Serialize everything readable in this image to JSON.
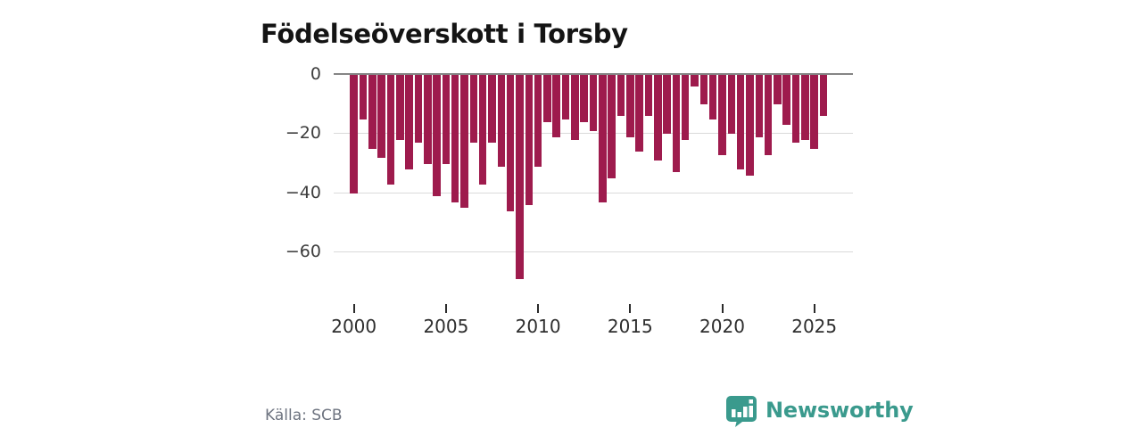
{
  "title": "Födelseöverskott i Torsby",
  "source": "Källa: SCB",
  "brand": {
    "name": "Newsworthy",
    "color": "#3a9a8d"
  },
  "colors": {
    "bar": "#9e1b4d",
    "grid": "#dadada",
    "zero_line": "#858585",
    "axis_text": "#3d3d3d",
    "title_text": "#141414",
    "source_text": "#6e7480"
  },
  "chart_data": {
    "type": "bar",
    "title": "Födelseöverskott i Torsby",
    "xlabel": "",
    "ylabel": "",
    "ylim": [
      -72,
      0
    ],
    "grid": "horizontal",
    "legend": false,
    "yticks": [
      0,
      -20,
      -40,
      -60
    ],
    "xticks": [
      "2000",
      "2005",
      "2010",
      "2015",
      "2020",
      "2025"
    ],
    "x": [
      "2000 H1",
      "2000 H2",
      "2001 H1",
      "2001 H2",
      "2002 H1",
      "2002 H2",
      "2003 H1",
      "2003 H2",
      "2004 H1",
      "2004 H2",
      "2005 H1",
      "2005 H2",
      "2006 H1",
      "2006 H2",
      "2007 H1",
      "2007 H2",
      "2008 H1",
      "2008 H2",
      "2009 H1",
      "2009 H2",
      "2010 H1",
      "2010 H2",
      "2011 H1",
      "2011 H2",
      "2012 H1",
      "2012 H2",
      "2013 H1",
      "2013 H2",
      "2014 H1",
      "2014 H2",
      "2015 H1",
      "2015 H2",
      "2016 H1",
      "2016 H2",
      "2017 H1",
      "2017 H2",
      "2018 H1",
      "2018 H2",
      "2019 H1",
      "2019 H2",
      "2020 H1",
      "2020 H2",
      "2021 H1",
      "2021 H2",
      "2022 H1",
      "2022 H2",
      "2023 H1",
      "2023 H2",
      "2024 H1",
      "2024 H2",
      "2025 H1",
      "2025 H2"
    ],
    "values": [
      -40,
      -15,
      -25,
      -28,
      -37,
      -22,
      -32,
      -23,
      -30,
      -41,
      -30,
      -43,
      -45,
      -23,
      -37,
      -23,
      -31,
      -46,
      -69,
      -44,
      -31,
      -16,
      -21,
      -15,
      -22,
      -16,
      -19,
      -43,
      -35,
      -14,
      -21,
      -26,
      -14,
      -29,
      -20,
      -33,
      -22,
      -4,
      -10,
      -15,
      -27,
      -20,
      -32,
      -34,
      -21,
      -27,
      -10,
      -17,
      -23,
      -22,
      -25,
      -14
    ]
  }
}
